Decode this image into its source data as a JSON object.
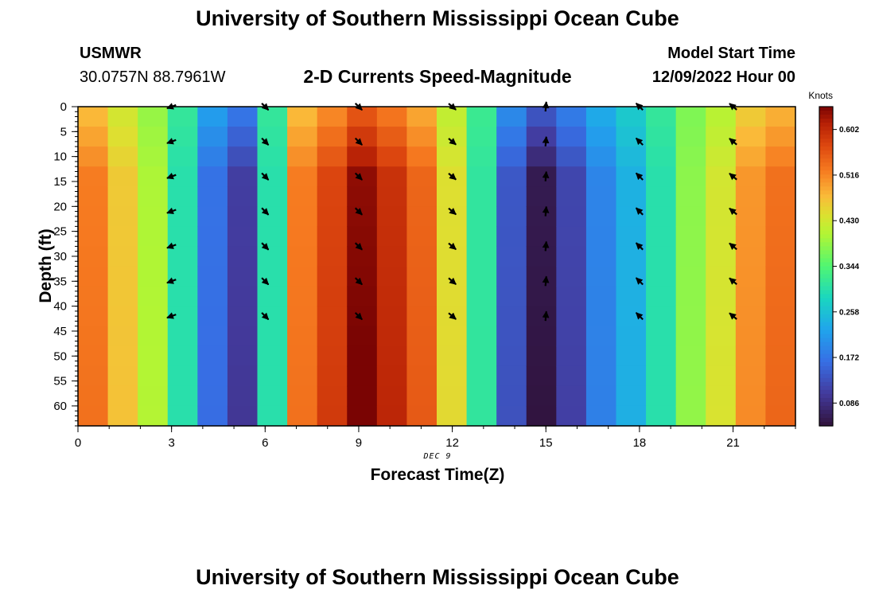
{
  "titles": {
    "main": "University of Southern Mississippi Ocean Cube",
    "bottom": "University of Southern Mississippi Ocean Cube"
  },
  "station": {
    "id": "USMWR",
    "coords": "30.0757N  88.7961W"
  },
  "model": {
    "label": "Model Start Time",
    "datetime": "12/09/2022 Hour 00"
  },
  "chart_data": {
    "type": "heatmap",
    "title": "2-D Currents Speed-Magnitude",
    "xlabel": "Forecast Time(Z)",
    "ylabel": "Depth (ft)",
    "date_label": "DEC 9",
    "xlim": [
      0,
      23
    ],
    "ylim": [
      0,
      64
    ],
    "y_inverted": true,
    "x_ticks": [
      0,
      3,
      6,
      9,
      12,
      15,
      18,
      21
    ],
    "y_ticks": [
      0,
      5,
      10,
      15,
      20,
      25,
      30,
      35,
      40,
      45,
      50,
      55,
      60
    ],
    "colorbar": {
      "label": "Knots",
      "min": 0.043,
      "max": 0.645,
      "ticks": [
        "0.086",
        "0.172",
        "0.258",
        "0.344",
        "0.430",
        "0.516",
        "0.602"
      ]
    },
    "speed_by_hour": [
      {
        "hour": 0,
        "speed": 0.52
      },
      {
        "hour": 1,
        "speed": 0.46
      },
      {
        "hour": 2,
        "speed": 0.4
      },
      {
        "hour": 3,
        "speed": 0.3
      },
      {
        "hour": 4,
        "speed": 0.17
      },
      {
        "hour": 5,
        "speed": 0.11
      },
      {
        "hour": 6,
        "speed": 0.3
      },
      {
        "hour": 7,
        "speed": 0.52
      },
      {
        "hour": 8,
        "speed": 0.57
      },
      {
        "hour": 9,
        "speed": 0.63
      },
      {
        "hour": 10,
        "speed": 0.59
      },
      {
        "hour": 11,
        "speed": 0.54
      },
      {
        "hour": 12,
        "speed": 0.44
      },
      {
        "hour": 13,
        "speed": 0.31
      },
      {
        "hour": 14,
        "speed": 0.14
      },
      {
        "hour": 15,
        "speed": 0.06
      },
      {
        "hour": 16,
        "speed": 0.12
      },
      {
        "hour": 17,
        "speed": 0.19
      },
      {
        "hour": 18,
        "speed": 0.24
      },
      {
        "hour": 19,
        "speed": 0.3
      },
      {
        "hour": 20,
        "speed": 0.38
      },
      {
        "hour": 21,
        "speed": 0.43
      },
      {
        "hour": 22,
        "speed": 0.5
      },
      {
        "hour": 23,
        "speed": 0.53
      }
    ],
    "vector_times": [
      3,
      6,
      9,
      12,
      15,
      18,
      21
    ],
    "vector_depths": [
      0,
      7,
      14,
      21,
      28,
      35,
      42
    ],
    "vector_direction_deg": [
      {
        "hour": 3,
        "angle": 160
      },
      {
        "hour": 6,
        "angle": 45
      },
      {
        "hour": 9,
        "angle": 45
      },
      {
        "hour": 12,
        "angle": 40
      },
      {
        "hour": 15,
        "angle": -85
      },
      {
        "hour": 18,
        "angle": -135
      },
      {
        "hour": 21,
        "angle": -140
      }
    ]
  }
}
